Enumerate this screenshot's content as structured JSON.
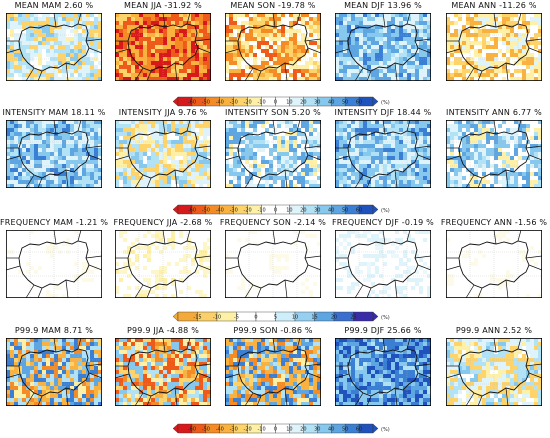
{
  "rows": [
    {
      "id": "mean",
      "panels": [
        {
          "title": "MEAN MAM 2.60 %",
          "pattern": "mixed-weak-blue"
        },
        {
          "title": "MEAN JJA -31.92 %",
          "pattern": "strong-orange"
        },
        {
          "title": "MEAN SON -19.78 %",
          "pattern": "orange-yellow"
        },
        {
          "title": "MEAN DJF 13.96 %",
          "pattern": "blue"
        },
        {
          "title": "MEAN ANN -11.26 %",
          "pattern": "yellow"
        }
      ],
      "colorbar": "cb1"
    },
    {
      "id": "intensity",
      "panels": [
        {
          "title": "INTENSITY MAM 18.11 %",
          "pattern": "blue"
        },
        {
          "title": "INTENSITY JJA 9.76 %",
          "pattern": "mixed-light"
        },
        {
          "title": "INTENSITY SON 5.20 %",
          "pattern": "blue-light"
        },
        {
          "title": "INTENSITY DJF 18.44 %",
          "pattern": "blue"
        },
        {
          "title": "INTENSITY ANN 6.77 %",
          "pattern": "blue-light"
        }
      ],
      "colorbar": "cb1"
    },
    {
      "id": "frequency",
      "panels": [
        {
          "title": "FREQUENCY MAM -1.21 %",
          "pattern": "blank"
        },
        {
          "title": "FREQUENCY JJA -2.68 %",
          "pattern": "blank-yellow"
        },
        {
          "title": "FREQUENCY SON -2.14 %",
          "pattern": "blank"
        },
        {
          "title": "FREQUENCY DJF -0.19 %",
          "pattern": "blank-blue"
        },
        {
          "title": "FREQUENCY ANN -1.56 %",
          "pattern": "blank"
        }
      ],
      "colorbar": "cb2"
    },
    {
      "id": "p999",
      "panels": [
        {
          "title": "P99.9 MAM 8.71 %",
          "pattern": "mixed-strong"
        },
        {
          "title": "P99.9 JJA -4.88 %",
          "pattern": "orange-mixed"
        },
        {
          "title": "P99.9 SON -0.86 %",
          "pattern": "mixed-strong"
        },
        {
          "title": "P99.9 DJF 25.66 %",
          "pattern": "strong-blue"
        },
        {
          "title": "P99.9 ANN 2.52 %",
          "pattern": "mixed-light"
        }
      ],
      "colorbar": "cb1"
    }
  ],
  "colorbars": {
    "cb1": {
      "ticks": [
        "-60",
        "-50",
        "-40",
        "-30",
        "-20",
        "-10",
        "0",
        "10",
        "20",
        "30",
        "40",
        "50",
        "60"
      ],
      "unit": "(%)",
      "colors": [
        "#d7191c",
        "#ee5a1a",
        "#f48b25",
        "#f9b13f",
        "#fdd36a",
        "#fef0a6",
        "#ffffff",
        "#ffffff",
        "#dff3fb",
        "#b2e2f5",
        "#87c8ee",
        "#5ea6e2",
        "#3a7fd3",
        "#2052bd"
      ]
    },
    "cb2": {
      "ticks": [
        "-15",
        "-10",
        "-5",
        "0",
        "5",
        "10",
        "15",
        "20",
        "25"
      ],
      "unit": "(%)",
      "colors": [
        "#f4a93b",
        "#fbd06a",
        "#fef0a6",
        "#ffffff",
        "#ffffff",
        "#cfeefb",
        "#96d0f1",
        "#5ea6e2",
        "#3a6fd0",
        "#3a2ba8"
      ]
    }
  },
  "colors": {
    "border": "#111111",
    "frame": "#000000",
    "orange_strong": "#ef6e1c",
    "blue_strong": "#3f7fd4"
  }
}
